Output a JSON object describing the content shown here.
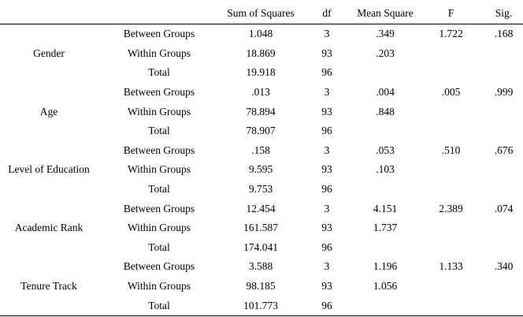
{
  "headers": [
    "",
    "",
    "Sum of Squares",
    "df",
    "Mean Square",
    "F",
    "Sig."
  ],
  "groups": [
    {
      "variable": "Gender",
      "rows": [
        {
          "source": "Between Groups",
          "ss": "1.048",
          "df": "3",
          "ms": ".349",
          "f": "1.722",
          "sig": ".168"
        },
        {
          "source": "Within Groups",
          "ss": "18.869",
          "df": "93",
          "ms": ".203",
          "f": "",
          "sig": ""
        },
        {
          "source": "Total",
          "ss": "19.918",
          "df": "96",
          "ms": "",
          "f": "",
          "sig": ""
        }
      ]
    },
    {
      "variable": "Age",
      "rows": [
        {
          "source": "Between Groups",
          "ss": ".013",
          "df": "3",
          "ms": ".004",
          "f": ".005",
          "sig": ".999"
        },
        {
          "source": "Within Groups",
          "ss": "78.894",
          "df": "93",
          "ms": ".848",
          "f": "",
          "sig": ""
        },
        {
          "source": "Total",
          "ss": "78.907",
          "df": "96",
          "ms": "",
          "f": "",
          "sig": ""
        }
      ]
    },
    {
      "variable": "Level of Education",
      "rows": [
        {
          "source": "Between Groups",
          "ss": ".158",
          "df": "3",
          "ms": ".053",
          "f": ".510",
          "sig": ".676"
        },
        {
          "source": "Within Groups",
          "ss": "9.595",
          "df": "93",
          "ms": ".103",
          "f": "",
          "sig": ""
        },
        {
          "source": "Total",
          "ss": "9.753",
          "df": "96",
          "ms": "",
          "f": "",
          "sig": ""
        }
      ]
    },
    {
      "variable": "Academic Rank",
      "rows": [
        {
          "source": "Between Groups",
          "ss": "12.454",
          "df": "3",
          "ms": "4.151",
          "f": "2.389",
          "sig": ".074"
        },
        {
          "source": "Within Groups",
          "ss": "161.587",
          "df": "93",
          "ms": "1.737",
          "f": "",
          "sig": ""
        },
        {
          "source": "Total",
          "ss": "174.041",
          "df": "96",
          "ms": "",
          "f": "",
          "sig": ""
        }
      ]
    },
    {
      "variable": "Tenure Track",
      "rows": [
        {
          "source": "Between Groups",
          "ss": "3.588",
          "df": "3",
          "ms": "1.196",
          "f": "1.133",
          "sig": ".340"
        },
        {
          "source": "Within Groups",
          "ss": "98.185",
          "df": "93",
          "ms": "1.056",
          "f": "",
          "sig": ""
        },
        {
          "source": "Total",
          "ss": "101.773",
          "df": "96",
          "ms": "",
          "f": "",
          "sig": ""
        }
      ]
    }
  ]
}
